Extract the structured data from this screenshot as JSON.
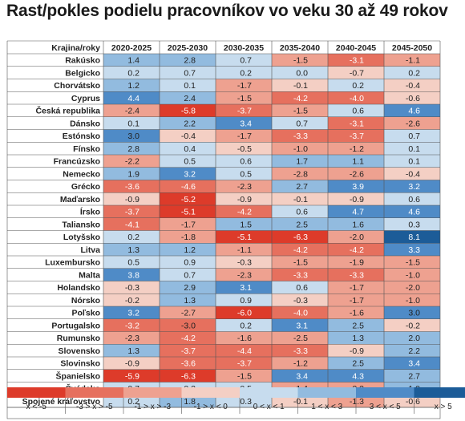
{
  "title": "Rast/pokles podielu pracovníkov vo veku 30 až 49 rokov",
  "chart_data": {
    "type": "heatmap",
    "row_header": "Krajina/roky",
    "columns": [
      "2020-2025",
      "2025-2030",
      "2030-2035",
      "2035-2040",
      "2040-2045",
      "2045-2050"
    ],
    "rows": [
      {
        "name": "Rakúsko",
        "values": [
          1.4,
          2.8,
          0.7,
          -1.5,
          -3.1,
          -1.1
        ]
      },
      {
        "name": "Belgicko",
        "values": [
          0.2,
          0.7,
          0.2,
          0.0,
          -0.7,
          0.2
        ]
      },
      {
        "name": "Chorvátsko",
        "values": [
          1.2,
          0.1,
          -1.7,
          -0.1,
          0.2,
          -0.4
        ]
      },
      {
        "name": "Cyprus",
        "values": [
          4.4,
          2.4,
          -1.5,
          -4.2,
          -4.0,
          -0.6
        ]
      },
      {
        "name": "Česká republika",
        "values": [
          -2.4,
          -5.8,
          -3.7,
          -1.5,
          0.6,
          4.6
        ]
      },
      {
        "name": "Dánsko",
        "values": [
          0.1,
          2.2,
          3.4,
          0.7,
          -3.1,
          -2.6
        ]
      },
      {
        "name": "Estónsko",
        "values": [
          3.0,
          -0.4,
          -1.7,
          -3.3,
          -3.7,
          0.7
        ]
      },
      {
        "name": "Fínsko",
        "values": [
          2.8,
          0.4,
          -0.5,
          -1.0,
          -1.2,
          0.1
        ]
      },
      {
        "name": "Francúzsko",
        "values": [
          -2.2,
          0.5,
          0.6,
          1.7,
          1.1,
          0.1
        ]
      },
      {
        "name": "Nemecko",
        "values": [
          1.9,
          3.2,
          0.5,
          -2.8,
          -2.6,
          -0.4
        ]
      },
      {
        "name": "Grécko",
        "values": [
          -3.6,
          -4.6,
          -2.3,
          2.7,
          3.9,
          3.2
        ]
      },
      {
        "name": "Maďarsko",
        "values": [
          -0.9,
          -5.2,
          -0.9,
          -0.1,
          -0.9,
          0.6
        ]
      },
      {
        "name": "Írsko",
        "values": [
          -3.7,
          -5.1,
          -4.2,
          0.6,
          4.7,
          4.6
        ]
      },
      {
        "name": "Taliansko",
        "values": [
          -4.1,
          -1.7,
          1.5,
          2.5,
          1.6,
          0.3
        ]
      },
      {
        "name": "Lotyšsko",
        "values": [
          0.2,
          -1.8,
          -5.1,
          -6.3,
          -2.0,
          8.1
        ]
      },
      {
        "name": "Litva",
        "values": [
          1.3,
          1.2,
          -1.1,
          -4.2,
          -4.2,
          3.3
        ]
      },
      {
        "name": "Luxembursko",
        "values": [
          0.5,
          0.9,
          -0.3,
          -1.5,
          -1.9,
          -1.5
        ]
      },
      {
        "name": "Malta",
        "values": [
          3.8,
          0.7,
          -2.3,
          -3.3,
          -3.3,
          -1.0
        ]
      },
      {
        "name": "Holandsko",
        "values": [
          -0.3,
          2.9,
          3.1,
          0.6,
          -1.7,
          -2.0
        ]
      },
      {
        "name": "Nórsko",
        "values": [
          -0.2,
          1.3,
          0.9,
          -0.3,
          -1.7,
          -1.0
        ]
      },
      {
        "name": "Poľsko",
        "values": [
          3.2,
          -2.7,
          -6.0,
          -4.0,
          -1.6,
          3.0
        ]
      },
      {
        "name": "Portugalsko",
        "values": [
          -3.2,
          -3.0,
          0.2,
          3.1,
          2.5,
          -0.2
        ]
      },
      {
        "name": "Rumunsko",
        "values": [
          -2.3,
          -4.2,
          -1.6,
          -2.5,
          1.3,
          2.0
        ]
      },
      {
        "name": "Slovensko",
        "values": [
          1.3,
          -3.7,
          -4.4,
          -3.3,
          -0.9,
          2.2
        ]
      },
      {
        "name": "Slovinsko",
        "values": [
          -0.9,
          -3.6,
          -3.7,
          -1.2,
          2.5,
          3.4
        ]
      },
      {
        "name": "Španielsko",
        "values": [
          -5.9,
          -6.3,
          -1.5,
          3.4,
          4.3,
          2.7
        ]
      },
      {
        "name": "Švédsko",
        "values": [
          0.7,
          0.2,
          0.5,
          -1.4,
          -2.2,
          1.0
        ]
      },
      {
        "name": "Spojené kráľovstvo",
        "values": [
          0.2,
          1.8,
          0.3,
          -0.1,
          -1.3,
          -0.6
        ]
      }
    ],
    "legend": [
      {
        "label": "x < -5",
        "color": "#dd3b2a"
      },
      {
        "label": "-3 > x > -5",
        "color": "#e6705e"
      },
      {
        "label": "-1 > x > -3",
        "color": "#eea190"
      },
      {
        "label": "-1 > x < 0",
        "color": "#f4cfc4"
      },
      {
        "label": "0 < x < 1",
        "color": "#c7dcee"
      },
      {
        "label": "1 < x < 3",
        "color": "#92bbdf"
      },
      {
        "label": "3 < x < 5",
        "color": "#4f8bc7"
      },
      {
        "label": "x > 5",
        "color": "#1c5c98"
      }
    ]
  }
}
